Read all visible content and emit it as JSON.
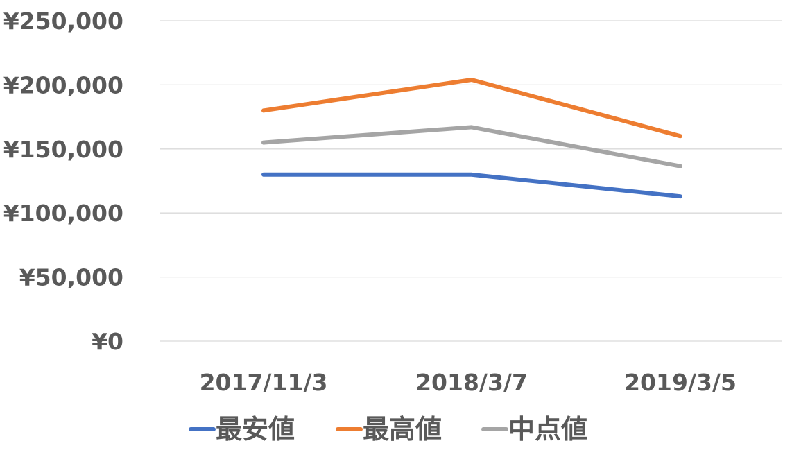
{
  "chart_data": {
    "type": "line",
    "title": "",
    "xlabel": "",
    "ylabel": "",
    "categories": [
      "2017/11/3",
      "2018/3/7",
      "2019/3/5"
    ],
    "y_tick_labels": [
      "¥0",
      "¥50,000",
      "¥100,000",
      "¥150,000",
      "¥200,000",
      "¥250,000"
    ],
    "y_ticks": [
      0,
      50000,
      100000,
      150000,
      200000,
      250000
    ],
    "ylim": [
      0,
      250000
    ],
    "grid": true,
    "legend_position": "bottom",
    "series": [
      {
        "name": "最安値",
        "color": "#4472C4",
        "values": [
          130000,
          130000,
          113000
        ]
      },
      {
        "name": "最高値",
        "color": "#ED7D31",
        "values": [
          180000,
          204000,
          160000
        ]
      },
      {
        "name": "中点値",
        "color": "#A5A5A5",
        "values": [
          155000,
          167000,
          136500
        ]
      }
    ]
  }
}
